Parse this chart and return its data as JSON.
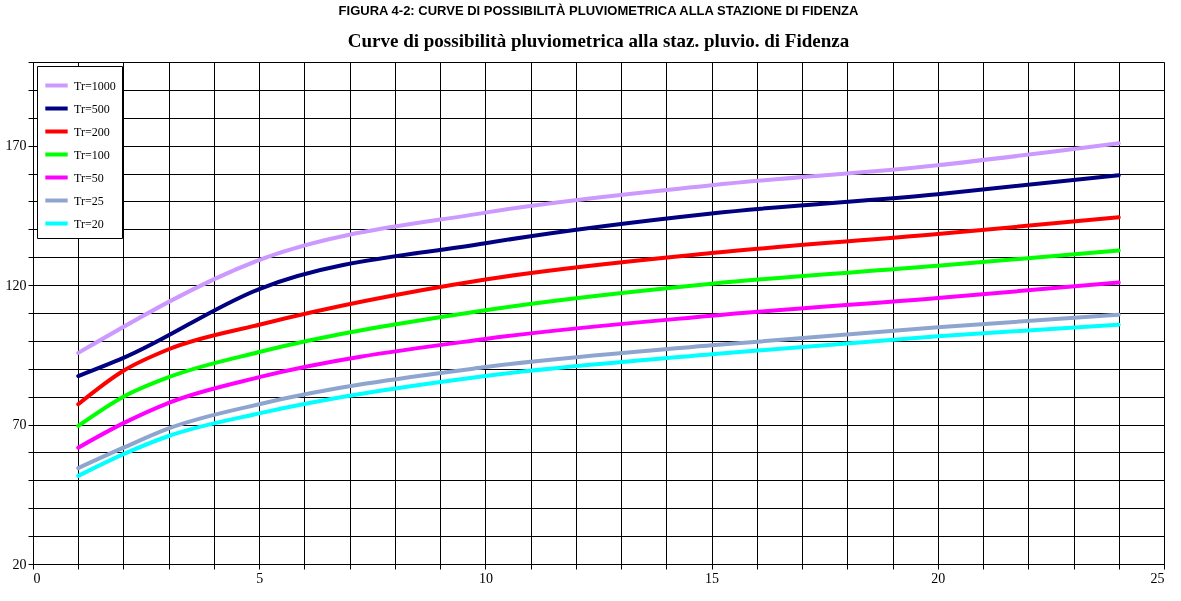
{
  "chart_data": {
    "type": "line",
    "title": "FIGURA 4-2: CURVE DI POSSIBILITÀ PLUVIOMETRICA ALLA STAZIONE DI FIDENZA",
    "subtitle": "Curve di possibilità pluviometrica alla staz. pluvio. di Fidenza",
    "xlim": [
      0,
      25
    ],
    "ylim": [
      20,
      200
    ],
    "xticks": [
      0,
      {
        "value": 1,
        "label": null
      },
      {
        "value": 2,
        "label": null
      },
      {
        "value": 3,
        "label": null
      },
      {
        "value": 4,
        "label": null
      },
      5,
      {
        "value": 6,
        "label": null
      },
      {
        "value": 7,
        "label": null
      },
      {
        "value": 8,
        "label": null
      },
      {
        "value": 9,
        "label": null
      },
      10,
      {
        "value": 11,
        "label": null
      },
      {
        "value": 12,
        "label": null
      },
      {
        "value": 13,
        "label": null
      },
      {
        "value": 14,
        "label": null
      },
      15,
      {
        "value": 16,
        "label": null
      },
      {
        "value": 17,
        "label": null
      },
      {
        "value": 18,
        "label": null
      },
      {
        "value": 19,
        "label": null
      },
      20,
      {
        "value": 21,
        "label": null
      },
      {
        "value": 22,
        "label": null
      },
      {
        "value": 23,
        "label": null
      },
      {
        "value": 24,
        "label": null
      },
      25
    ],
    "yticks": [
      20,
      {
        "value": 30,
        "label": null
      },
      {
        "value": 40,
        "label": null
      },
      {
        "value": 50,
        "label": null
      },
      {
        "value": 60,
        "label": null
      },
      70,
      {
        "value": 80,
        "label": null
      },
      {
        "value": 90,
        "label": null
      },
      {
        "value": 100,
        "label": null
      },
      {
        "value": 110,
        "label": null
      },
      120,
      {
        "value": 130,
        "label": null
      },
      {
        "value": 140,
        "label": null
      },
      {
        "value": 150,
        "label": null
      },
      {
        "value": 160,
        "label": null
      },
      170,
      {
        "value": 180,
        "label": null
      },
      {
        "value": 190,
        "label": null
      },
      {
        "value": 200,
        "label": null
      }
    ],
    "grid": true,
    "legend": "top left",
    "marker": "none",
    "line_style": "solid",
    "series": [
      {
        "name": "Tr=1000",
        "color": "#cc99ff",
        "x": [
          1,
          5,
          10,
          15,
          20,
          24
        ],
        "values": [
          95.7,
          129,
          146,
          155.8,
          163,
          170.9
        ]
      },
      {
        "name": "Tr=500",
        "color": "#000080",
        "x": [
          1,
          2,
          5,
          10,
          15,
          20,
          24
        ],
        "values": [
          87.4,
          93.9,
          118.6,
          135,
          145.7,
          152.6,
          159.4
        ]
      },
      {
        "name": "Tr=200",
        "color": "#ff0000",
        "x": [
          1,
          2,
          3,
          5,
          10,
          15,
          20,
          24
        ],
        "values": [
          77.3,
          89.3,
          97,
          105.8,
          122,
          131.5,
          138.3,
          144.3
        ]
      },
      {
        "name": "Tr=100",
        "color": "#00ff00",
        "x": [
          1,
          2,
          3,
          5,
          10,
          15,
          20,
          24
        ],
        "values": [
          69.5,
          80,
          87,
          96,
          111,
          120.5,
          126.9,
          132.4
        ]
      },
      {
        "name": "Tr=50",
        "color": "#ff00ff",
        "x": [
          1,
          2,
          3,
          5,
          10,
          15,
          20,
          24
        ],
        "values": [
          61.7,
          70.5,
          77.8,
          87,
          100.7,
          109,
          115.4,
          120.9
        ]
      },
      {
        "name": "Tr=25",
        "color": "#8ea5d0",
        "x": [
          1,
          2,
          3,
          5,
          10,
          15,
          20,
          24
        ],
        "values": [
          54.4,
          61.7,
          68.6,
          77.3,
          90.6,
          98.4,
          104.9,
          109.4
        ]
      },
      {
        "name": "Tr=20",
        "color": "#00ffff",
        "x": [
          1,
          2,
          3,
          5,
          10,
          15,
          20,
          24
        ],
        "values": [
          51.6,
          59.4,
          65.9,
          74,
          87.4,
          95.2,
          101.7,
          105.8
        ]
      }
    ]
  }
}
